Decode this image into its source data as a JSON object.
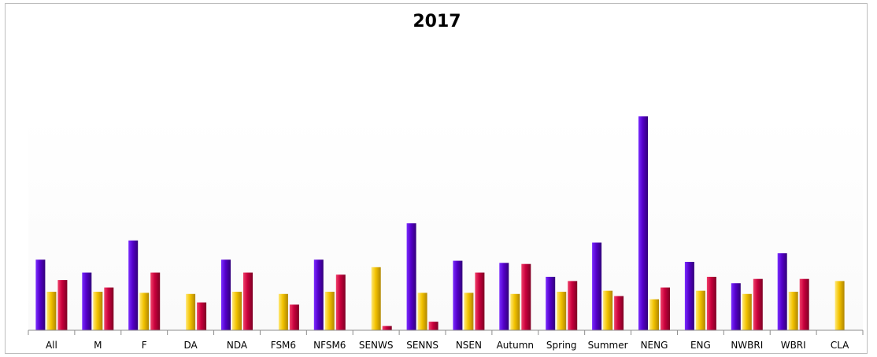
{
  "chart_data": {
    "type": "bar",
    "title": "2017",
    "xlabel": "",
    "ylabel": "",
    "ylim": [
      0,
      100
    ],
    "grid": false,
    "legend": "none",
    "categories": [
      "All",
      "M",
      "F",
      "DA",
      "NDA",
      "FSM6",
      "NFSM6",
      "SENWS",
      "SENNS",
      "NSEN",
      "Autumn",
      "Spring",
      "Summer",
      "NENG",
      "ENG",
      "NWBRI",
      "WBRI",
      "CLA"
    ],
    "series": [
      {
        "color": "#5b00c8",
        "values": [
          33,
          27,
          42,
          0,
          33,
          0,
          33,
          0,
          50,
          32.5,
          31.5,
          25,
          41,
          100,
          32,
          22,
          36,
          0
        ]
      },
      {
        "color": "#f2c200",
        "values": [
          18,
          18,
          17.5,
          17,
          18,
          17,
          18,
          29.5,
          17.5,
          17.5,
          17,
          18,
          18.5,
          14.5,
          18.5,
          17,
          18,
          23
        ]
      },
      {
        "color": "#c8003c",
        "values": [
          23.5,
          20,
          27,
          13,
          27,
          12,
          26,
          2,
          4,
          27,
          31,
          23,
          16,
          20,
          25,
          24,
          24,
          0
        ]
      }
    ]
  }
}
